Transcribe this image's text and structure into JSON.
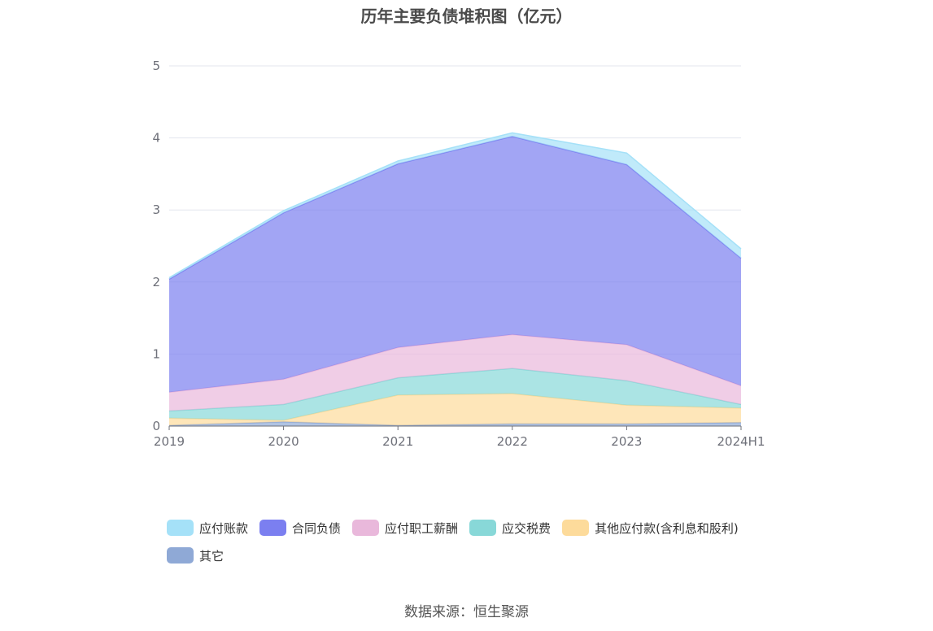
{
  "chart_data": {
    "type": "area",
    "stacked": true,
    "title": "历年主要负债堆积图（亿元）",
    "xlabel": "",
    "ylabel": "",
    "categories": [
      "2019",
      "2020",
      "2021",
      "2022",
      "2023",
      "2024H1"
    ],
    "ylim": [
      0,
      5
    ],
    "yticks": [
      "0",
      "1",
      "2",
      "3",
      "4",
      "5"
    ],
    "grid": true,
    "legend_position": "bottom",
    "series": [
      {
        "name": "其它",
        "color": "#8fa9d6",
        "values": [
          0.01,
          0.06,
          0.01,
          0.03,
          0.03,
          0.05
        ]
      },
      {
        "name": "其他应付款(含利息和股利)",
        "color": "#fddb9b",
        "values": [
          0.1,
          0.02,
          0.42,
          0.42,
          0.26,
          0.2
        ]
      },
      {
        "name": "应交税费",
        "color": "#88d8d8",
        "values": [
          0.1,
          0.22,
          0.24,
          0.35,
          0.34,
          0.05
        ]
      },
      {
        "name": "应付职工薪酬",
        "color": "#e9b8db",
        "values": [
          0.26,
          0.35,
          0.42,
          0.47,
          0.5,
          0.26
        ]
      },
      {
        "name": "合同负债",
        "color": "#7b7ff0",
        "values": [
          1.57,
          2.31,
          2.55,
          2.75,
          2.5,
          1.77
        ]
      },
      {
        "name": "应付账款",
        "color": "#a5e1f8",
        "values": [
          0.02,
          0.03,
          0.04,
          0.05,
          0.16,
          0.13
        ]
      }
    ]
  },
  "legend": [
    {
      "name": "应付账款",
      "color": "#a5e1f8"
    },
    {
      "name": "合同负债",
      "color": "#7b7ff0"
    },
    {
      "name": "应付职工薪酬",
      "color": "#e9b8db"
    },
    {
      "name": "应交税费",
      "color": "#88d8d8"
    },
    {
      "name": "其他应付款(含利息和股利)",
      "color": "#fddb9b"
    },
    {
      "name": "其它",
      "color": "#8fa9d6"
    }
  ],
  "source": "数据来源：恒生聚源"
}
